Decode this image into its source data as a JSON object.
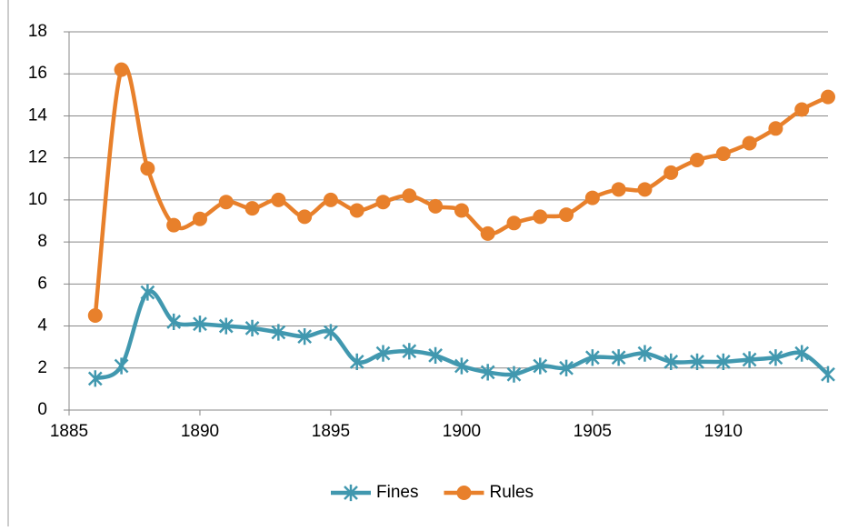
{
  "chart_data": {
    "type": "line",
    "smooth": true,
    "grid": true,
    "x": [
      1886,
      1887,
      1888,
      1889,
      1890,
      1891,
      1892,
      1893,
      1894,
      1895,
      1896,
      1897,
      1898,
      1899,
      1900,
      1901,
      1902,
      1903,
      1904,
      1905,
      1906,
      1907,
      1908,
      1909,
      1910,
      1911,
      1912,
      1913,
      1914
    ],
    "series": [
      {
        "name": "Fines",
        "color": "#4198af",
        "marker": "star",
        "values": [
          1.5,
          2.1,
          5.6,
          4.2,
          4.1,
          4.0,
          3.9,
          3.7,
          3.5,
          3.7,
          2.3,
          2.7,
          2.8,
          2.6,
          2.1,
          1.8,
          1.7,
          2.1,
          2.0,
          2.5,
          2.5,
          2.7,
          2.3,
          2.3,
          2.3,
          2.4,
          2.5,
          2.7,
          1.7
        ]
      },
      {
        "name": "Rules",
        "color": "#e8802b",
        "marker": "circle",
        "values": [
          4.5,
          16.2,
          11.5,
          8.8,
          9.1,
          9.9,
          9.6,
          10.0,
          9.2,
          10.0,
          9.5,
          9.9,
          10.2,
          9.7,
          9.5,
          8.4,
          8.9,
          9.2,
          9.3,
          10.1,
          10.5,
          10.5,
          11.3,
          11.9,
          12.2,
          12.7,
          13.4,
          14.3,
          14.9
        ]
      }
    ],
    "xlim": [
      1885,
      1914
    ],
    "xticks": [
      1885,
      1890,
      1895,
      1900,
      1905,
      1910
    ],
    "ylim": [
      0,
      18
    ],
    "yticks": [
      0,
      2,
      4,
      6,
      8,
      10,
      12,
      14,
      16,
      18
    ],
    "legend": "bottom"
  }
}
